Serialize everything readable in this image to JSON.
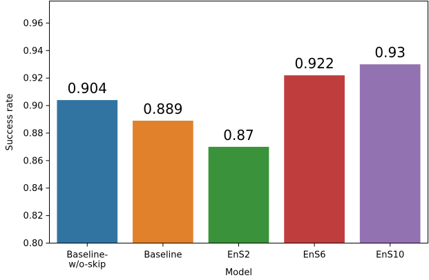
{
  "chart_data": {
    "type": "bar",
    "categories": [
      "Baseline-\nw/o-skip",
      "Baseline",
      "EnS2",
      "EnS6",
      "EnS10"
    ],
    "values": [
      0.904,
      0.889,
      0.87,
      0.922,
      0.93
    ],
    "data_labels": [
      "0.904",
      "0.889",
      "0.87",
      "0.922",
      "0.93"
    ],
    "colors": [
      "#3274a1",
      "#e1812c",
      "#3a923a",
      "#c03d3e",
      "#9372b2"
    ],
    "title": "",
    "xlabel": "Model",
    "ylabel": "Success rate",
    "ylim": [
      0.8,
      0.976
    ],
    "yticks": [
      0.8,
      0.82,
      0.84,
      0.86,
      0.88,
      0.9,
      0.92,
      0.94,
      0.96
    ],
    "ytick_labels": [
      "0.80",
      "0.82",
      "0.84",
      "0.86",
      "0.88",
      "0.90",
      "0.92",
      "0.94",
      "0.96"
    ],
    "grid": false,
    "legend": "none"
  }
}
